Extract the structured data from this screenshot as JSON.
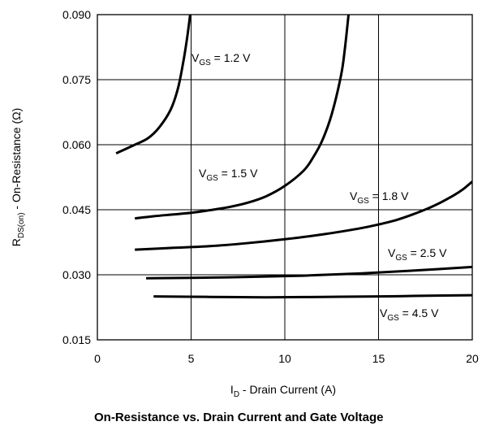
{
  "chart_data": {
    "type": "line",
    "title": "On-Resistance vs. Drain Current and Gate Voltage",
    "xlabel": {
      "main": "I",
      "sub": "D",
      "rest": " - Drain Current (A)"
    },
    "ylabel": {
      "main": "R",
      "sub": "DS(on)",
      "rest": " - On-Resistance (Ω)"
    },
    "xlim": [
      0,
      20
    ],
    "ylim": [
      0.015,
      0.09
    ],
    "x_ticks": [
      0,
      5,
      10,
      15,
      20
    ],
    "x_tick_labels": [
      "0",
      "5",
      "10",
      "15",
      "20"
    ],
    "y_ticks": [
      0.015,
      0.03,
      0.045,
      0.06,
      0.075,
      0.09
    ],
    "y_tick_labels": [
      "0.015",
      "0.030",
      "0.045",
      "0.060",
      "0.075",
      "0.090"
    ],
    "grid": true,
    "series": [
      {
        "name": "VGS = 1.2 V",
        "label": {
          "main": "V",
          "sub": "GS",
          "rest": " = 1.2 V"
        },
        "x": [
          1.0,
          2.0,
          2.7,
          3.3,
          3.9,
          4.3,
          4.6,
          4.8,
          4.95
        ],
        "y": [
          0.058,
          0.06,
          0.0615,
          0.064,
          0.068,
          0.073,
          0.0795,
          0.085,
          0.09
        ]
      },
      {
        "name": "VGS = 1.5 V",
        "label": {
          "main": "V",
          "sub": "GS",
          "rest": " = 1.5 V"
        },
        "x": [
          2.0,
          3.0,
          4.0,
          5.0,
          6.0,
          7.0,
          8.0,
          9.0,
          10.0,
          11.0,
          11.5,
          12.0,
          12.5,
          13.0,
          13.2,
          13.4
        ],
        "y": [
          0.043,
          0.0435,
          0.0439,
          0.0443,
          0.0449,
          0.0456,
          0.0466,
          0.0481,
          0.0505,
          0.054,
          0.057,
          0.061,
          0.067,
          0.076,
          0.082,
          0.09
        ]
      },
      {
        "name": "VGS = 1.8 V",
        "label": {
          "main": "V",
          "sub": "GS",
          "rest": " = 1.8 V"
        },
        "x": [
          2.0,
          4.0,
          6.0,
          8.0,
          10.0,
          12.0,
          14.0,
          15.0,
          16.0,
          17.0,
          18.0,
          19.0,
          19.5,
          20.0
        ],
        "y": [
          0.0358,
          0.0362,
          0.0366,
          0.0373,
          0.0382,
          0.0393,
          0.0407,
          0.0416,
          0.0427,
          0.0442,
          0.046,
          0.0483,
          0.0497,
          0.0515
        ]
      },
      {
        "name": "VGS = 2.5 V",
        "label": {
          "main": "V",
          "sub": "GS",
          "rest": " = 2.5 V"
        },
        "x": [
          2.6,
          5.0,
          8.0,
          11.0,
          14.0,
          17.0,
          20.0
        ],
        "y": [
          0.0292,
          0.0293,
          0.0295,
          0.0298,
          0.0303,
          0.031,
          0.0318
        ]
      },
      {
        "name": "VGS = 4.5 V",
        "label": {
          "main": "V",
          "sub": "GS",
          "rest": " = 4.5 V"
        },
        "x": [
          3.0,
          6.0,
          9.0,
          12.0,
          15.0,
          18.0,
          20.0
        ],
        "y": [
          0.025,
          0.0249,
          0.0248,
          0.0249,
          0.025,
          0.0252,
          0.0253
        ]
      }
    ]
  }
}
